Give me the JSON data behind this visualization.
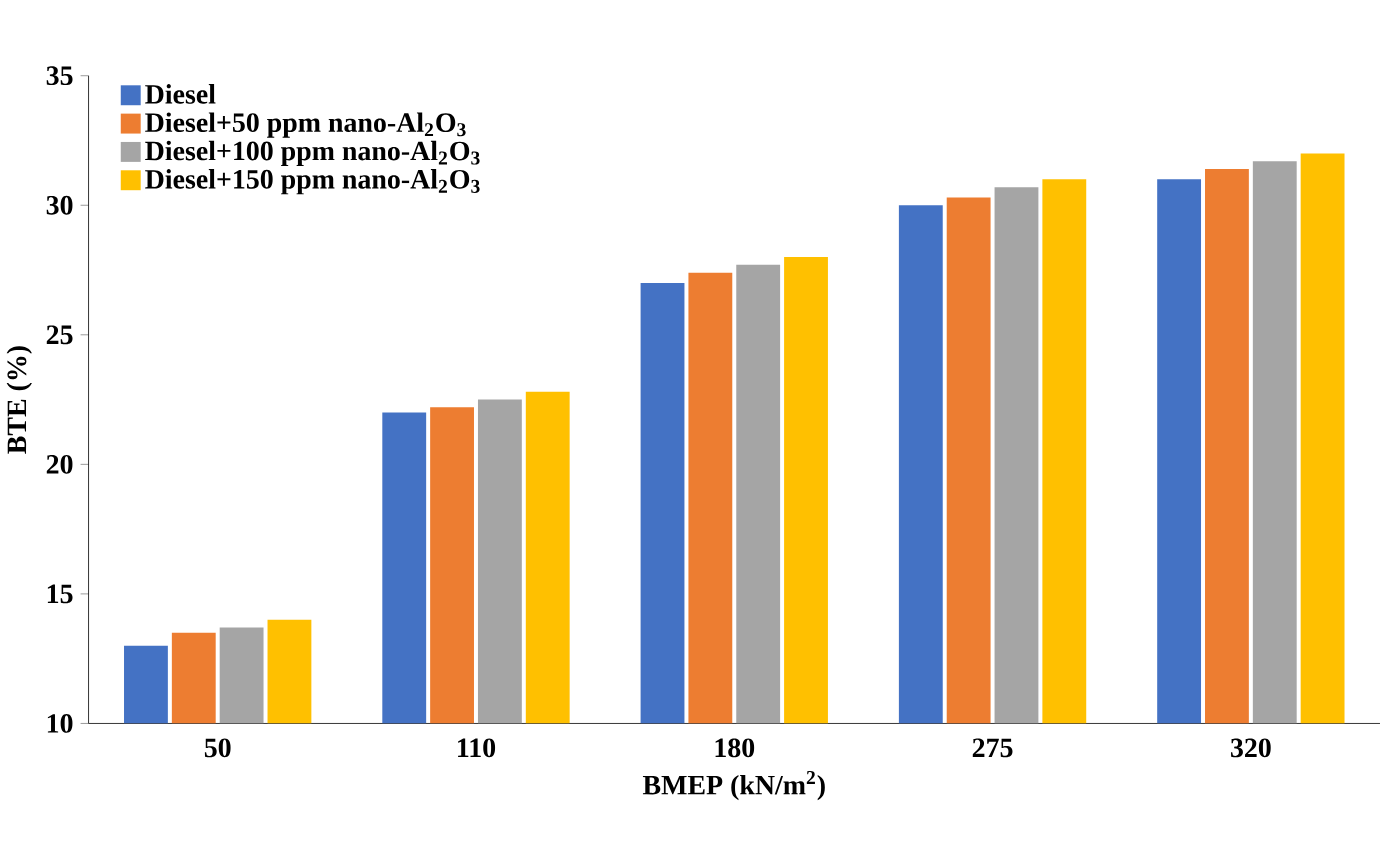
{
  "chart_data": {
    "type": "bar",
    "xlabel": "BMEP (kN/m$^{2}$)",
    "ylabel": "BTE (%)",
    "categories": [
      "50",
      "110",
      "180",
      "275",
      "320"
    ],
    "series": [
      {
        "name": "Diesel",
        "color": "#4472c4",
        "values": [
          13,
          22,
          27,
          30,
          31
        ]
      },
      {
        "name": "Diesel+50 ppm nano-Al$_{2}$O$_{3}$",
        "color": "#ed7d31",
        "values": [
          13.5,
          22.2,
          27.4,
          30.3,
          31.4
        ]
      },
      {
        "name": "Diesel+100 ppm nano-Al$_{2}$O$_{3}$",
        "color": "#a5a5a5",
        "values": [
          13.7,
          22.5,
          27.7,
          30.7,
          31.7
        ]
      },
      {
        "name": "Diesel+150 ppm nano-Al$_{2}$O$_{3}$",
        "color": "#ffc000",
        "values": [
          14,
          22.8,
          28,
          31,
          32
        ]
      }
    ],
    "ylim": [
      10,
      35
    ],
    "yticks": [
      10,
      15,
      20,
      25,
      30,
      35
    ],
    "grid": false,
    "legend": "top left"
  }
}
